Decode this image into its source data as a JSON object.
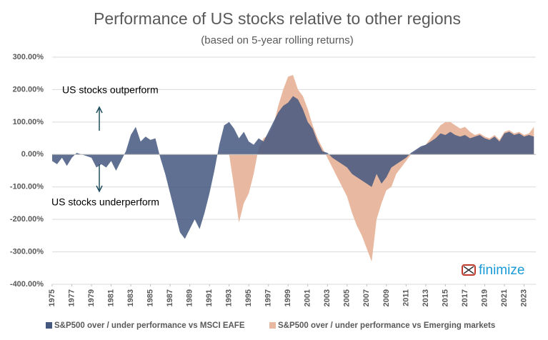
{
  "chart_data": {
    "type": "area",
    "title": "Performance of US stocks relative to other regions",
    "subtitle": "(based on 5-year rolling returns)",
    "annotations": [
      "US stocks outperform",
      "US stocks underperform"
    ],
    "logo": "finimize",
    "x": [
      1975,
      1975.5,
      1976,
      1976.5,
      1977,
      1977.5,
      1978,
      1978.5,
      1979,
      1979.5,
      1980,
      1980.5,
      1981,
      1981.5,
      1982,
      1982.5,
      1983,
      1983.5,
      1984,
      1984.5,
      1985,
      1985.5,
      1986,
      1986.5,
      1987,
      1987.5,
      1988,
      1988.5,
      1989,
      1989.5,
      1990,
      1990.5,
      1991,
      1991.5,
      1992,
      1992.5,
      1993,
      1993.5,
      1994,
      1994.5,
      1995,
      1995.5,
      1996,
      1996.5,
      1997,
      1997.5,
      1998,
      1998.5,
      1999,
      1999.5,
      2000,
      2000.5,
      2001,
      2001.5,
      2002,
      2002.5,
      2003,
      2003.5,
      2004,
      2004.5,
      2005,
      2005.5,
      2006,
      2006.5,
      2007,
      2007.5,
      2008,
      2008.5,
      2009,
      2009.5,
      2010,
      2010.5,
      2011,
      2011.5,
      2012,
      2012.5,
      2013,
      2013.5,
      2014,
      2014.5,
      2015,
      2015.5,
      2016,
      2016.5,
      2017,
      2017.5,
      2018,
      2018.5,
      2019,
      2019.5,
      2020,
      2020.5,
      2021,
      2021.5,
      2022,
      2022.5,
      2023,
      2023.5,
      2024
    ],
    "series": [
      {
        "name": "S&P500 over / under performance vs MSCI EAFE",
        "color": "#44577f",
        "values": [
          -20,
          -30,
          -10,
          -35,
          -10,
          5,
          0,
          -5,
          -10,
          -40,
          -30,
          -40,
          -20,
          -50,
          -20,
          10,
          60,
          85,
          40,
          55,
          45,
          50,
          -10,
          -60,
          -120,
          -180,
          -240,
          -260,
          -230,
          -200,
          -230,
          -180,
          -120,
          -50,
          30,
          90,
          100,
          80,
          50,
          70,
          40,
          30,
          50,
          40,
          70,
          100,
          130,
          150,
          160,
          180,
          170,
          140,
          100,
          80,
          40,
          10,
          5,
          -10,
          -20,
          -30,
          -40,
          -60,
          -70,
          -80,
          -90,
          -100,
          -60,
          -90,
          -70,
          -40,
          -30,
          -20,
          -10,
          5,
          15,
          25,
          30,
          40,
          50,
          65,
          60,
          70,
          60,
          55,
          60,
          50,
          55,
          60,
          50,
          45,
          55,
          40,
          65,
          70,
          60,
          65,
          55,
          60,
          55
        ]
      },
      {
        "name": "S&P500 over / under performance vs Emerging markets",
        "color": "#e8b9a0",
        "values": [
          null,
          null,
          null,
          null,
          null,
          null,
          null,
          null,
          null,
          null,
          null,
          null,
          null,
          null,
          null,
          null,
          null,
          null,
          null,
          null,
          null,
          null,
          null,
          null,
          null,
          null,
          null,
          null,
          null,
          null,
          null,
          null,
          null,
          null,
          null,
          null,
          0,
          -100,
          -210,
          -150,
          -120,
          -60,
          20,
          50,
          60,
          90,
          150,
          200,
          240,
          245,
          200,
          180,
          140,
          90,
          50,
          20,
          -10,
          -40,
          -70,
          -100,
          -130,
          -180,
          -220,
          -250,
          -290,
          -330,
          -200,
          -150,
          -110,
          -100,
          -60,
          -40,
          -20,
          0,
          10,
          20,
          30,
          50,
          70,
          90,
          100,
          100,
          90,
          80,
          85,
          70,
          60,
          65,
          55,
          50,
          60,
          45,
          70,
          75,
          65,
          70,
          60,
          65,
          85
        ]
      }
    ],
    "xlim": [
      1975,
      2024.2
    ],
    "xticks": [
      1975,
      1977,
      1979,
      1981,
      1983,
      1985,
      1987,
      1989,
      1991,
      1993,
      1995,
      1997,
      1999,
      2001,
      2003,
      2005,
      2007,
      2009,
      2011,
      2013,
      2015,
      2017,
      2019,
      2021,
      2023
    ],
    "ylim": [
      -400,
      300
    ],
    "yticks": [
      {
        "value": 300,
        "label": "300.00%"
      },
      {
        "value": 200,
        "label": "200.00%"
      },
      {
        "value": 100,
        "label": "100.00%"
      },
      {
        "value": 0,
        "label": "0.00%"
      },
      {
        "value": -100,
        "label": "-100.00%"
      },
      {
        "value": -200,
        "label": "-200.00%"
      },
      {
        "value": -300,
        "label": "-300.00%"
      },
      {
        "value": -400,
        "label": "-400.00%"
      }
    ],
    "grid": true
  }
}
